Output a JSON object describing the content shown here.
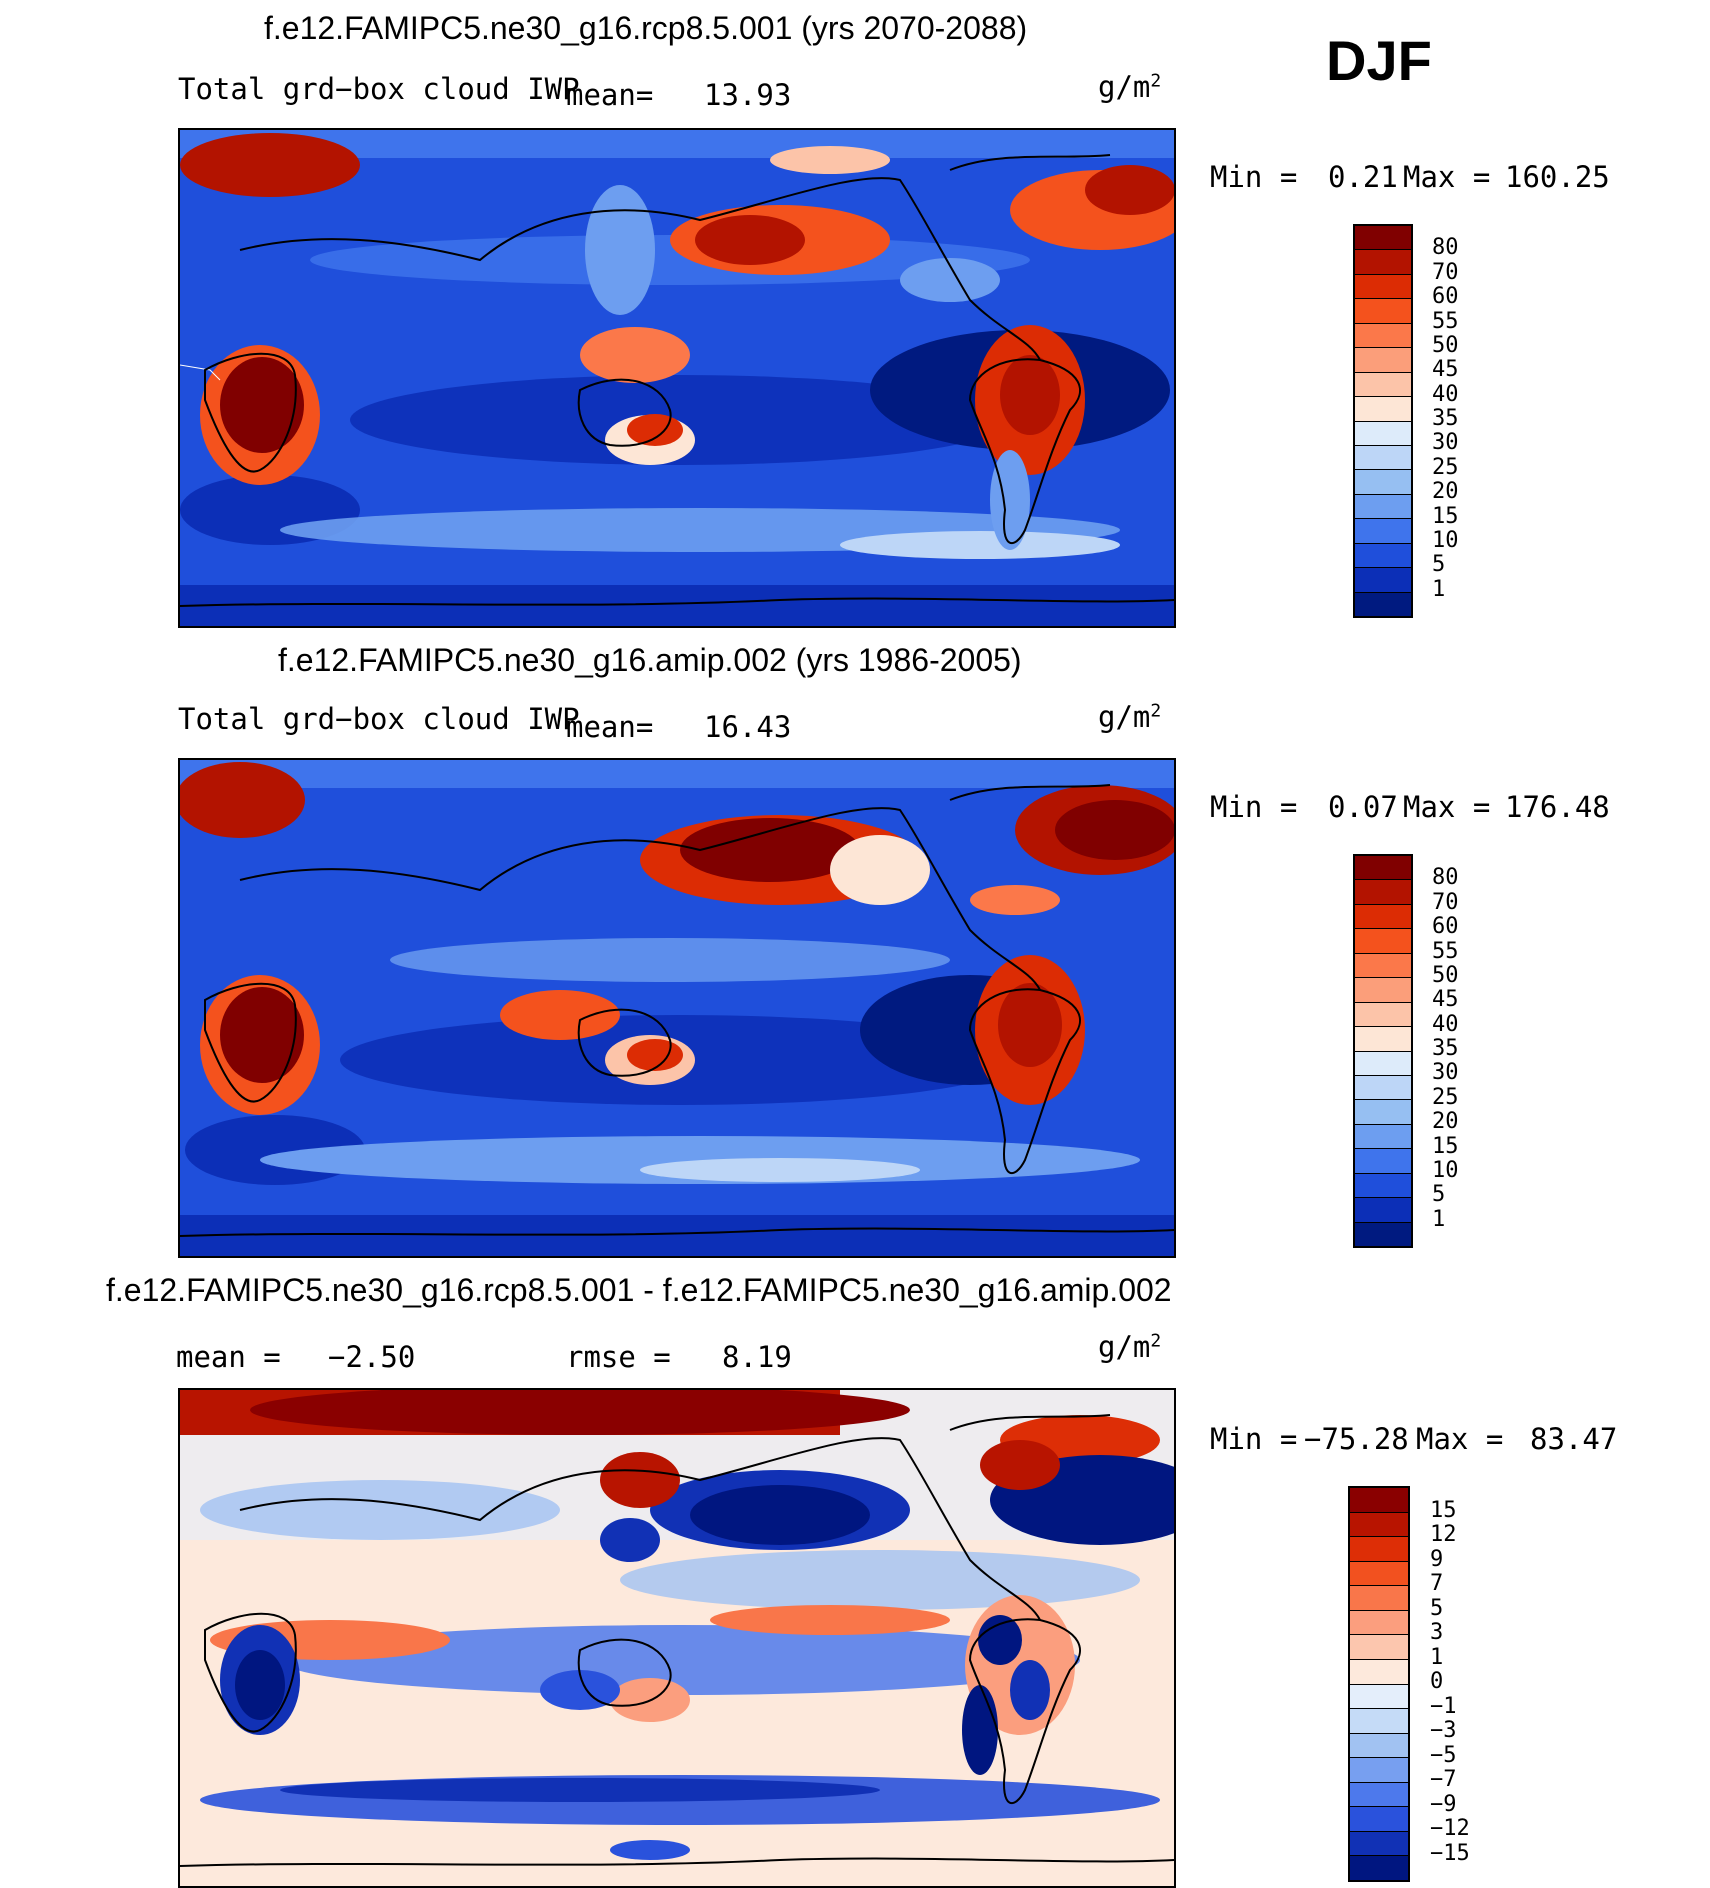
{
  "season": "DJF",
  "panels": [
    {
      "title": "f.e12.FAMIPC5.ne30_g16.rcp8.5.001 (yrs 2070-2088)",
      "variable": "Total grd−box cloud IWP",
      "mean_label": "mean=",
      "mean_value": "13.93",
      "units": "g/m",
      "units_exp": "2",
      "min_label": "Min =",
      "min_value": "0.21",
      "max_label": "Max =",
      "max_value": "160.25",
      "colorbar_labels": [
        "80",
        "70",
        "60",
        "55",
        "50",
        "45",
        "40",
        "35",
        "30",
        "25",
        "20",
        "15",
        "10",
        "5",
        "1"
      ],
      "colorbar_colors": [
        "#800000",
        "#b31300",
        "#dc2c04",
        "#f4521d",
        "#fb784a",
        "#fb9e7a",
        "#fcc4a9",
        "#fde6d6",
        "#ddebfa",
        "#bdd6f7",
        "#96bff2",
        "#6d9ef0",
        "#3f74ec",
        "#1f4fdb",
        "#0c2fb7",
        "#001a80"
      ]
    },
    {
      "title": "f.e12.FAMIPC5.ne30_g16.amip.002 (yrs 1986-2005)",
      "variable": "Total grd−box cloud IWP",
      "mean_label": "mean=",
      "mean_value": "16.43",
      "units": "g/m",
      "units_exp": "2",
      "min_label": "Min =",
      "min_value": "0.07",
      "max_label": "Max =",
      "max_value": "176.48",
      "colorbar_labels": [
        "80",
        "70",
        "60",
        "55",
        "50",
        "45",
        "40",
        "35",
        "30",
        "25",
        "20",
        "15",
        "10",
        "5",
        "1"
      ],
      "colorbar_colors": [
        "#800000",
        "#b31300",
        "#dc2c04",
        "#f4521d",
        "#fb784a",
        "#fb9e7a",
        "#fcc4a9",
        "#fde6d6",
        "#ddebfa",
        "#bdd6f7",
        "#96bff2",
        "#6d9ef0",
        "#3f74ec",
        "#1f4fdb",
        "#0c2fb7",
        "#001a80"
      ]
    },
    {
      "title": "f.e12.FAMIPC5.ne30_g16.rcp8.5.001 - f.e12.FAMIPC5.ne30_g16.amip.002",
      "mean_label": "mean =",
      "mean_value": "−2.50",
      "rmse_label": "rmse =",
      "rmse_value": "8.19",
      "units": "g/m",
      "units_exp": "2",
      "min_label": "Min =",
      "min_value": "−75.28",
      "max_label": "Max =",
      "max_value": "83.47",
      "colorbar_labels": [
        "15",
        "12",
        "9",
        "7",
        "5",
        "3",
        "1",
        "0",
        "−1",
        "−3",
        "−5",
        "−7",
        "−9",
        "−12",
        "−15"
      ],
      "colorbar_colors": [
        "#8a0000",
        "#b81400",
        "#dd2e06",
        "#f2511f",
        "#f9764a",
        "#fb9e7e",
        "#fcc6ae",
        "#fde9dc",
        "#e4eefb",
        "#c5dbf7",
        "#a1c2f2",
        "#779ff0",
        "#4d79ec",
        "#2a52dc",
        "#1131b5",
        "#001680"
      ]
    }
  ]
}
